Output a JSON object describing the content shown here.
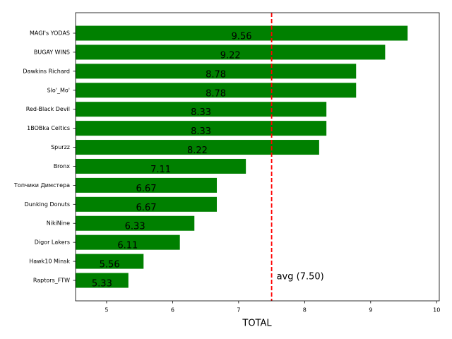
{
  "chart_data": {
    "type": "barh",
    "xlabel": "TOTAL",
    "categories": [
      "MAGI's YODAS",
      "BUGAY WINS",
      "Dawkins Richard",
      "Slo'_Mo'",
      "Red-Black Devil",
      "1BOBka Celtics",
      "Spurzz",
      "Bronx",
      "Топчики Димстера",
      "Dunking Donuts",
      "NikiNine",
      "Digor Lakers",
      "Hawk10 Minsk",
      "Raptors_FTW"
    ],
    "values": [
      9.56,
      9.22,
      8.78,
      8.78,
      8.33,
      8.33,
      8.22,
      7.11,
      6.67,
      6.67,
      6.33,
      6.11,
      5.56,
      5.33
    ],
    "color": "#008000",
    "xlim": [
      4.53,
      10.04
    ],
    "xticks": [
      5,
      6,
      7,
      8,
      9,
      10
    ],
    "avg_line": {
      "value": 7.5,
      "label": "avg (7.50)",
      "color": "#ff0000"
    }
  }
}
